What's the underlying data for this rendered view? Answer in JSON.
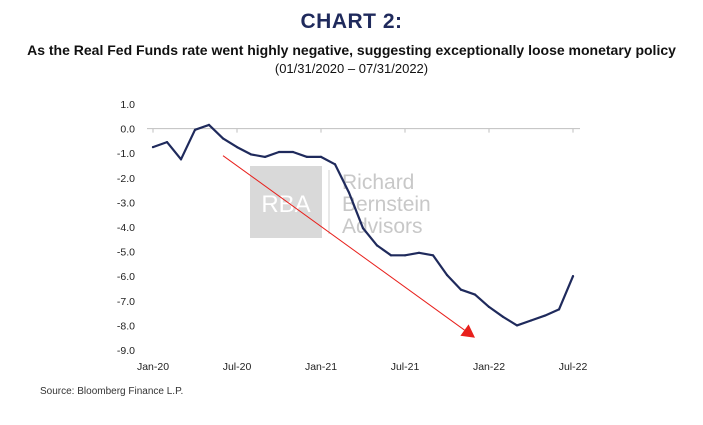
{
  "header": {
    "title": "CHART 2:",
    "subtitle": "As the Real Fed Funds rate went highly negative, suggesting exceptionally loose monetary policy",
    "date_range": "(01/31/2020 – 07/31/2022)"
  },
  "watermark": {
    "logo_text": "RBA",
    "lines": [
      "Richard",
      "Bernstein",
      "Advisors"
    ]
  },
  "footer": {
    "source": "Source: Bloomberg Finance L.P."
  },
  "colors": {
    "title": "#1f2a5c",
    "line": "#1f2a5c",
    "arrow": "#e8201c",
    "axis": "#bfbfbf",
    "watermark": "#c8c8c8"
  },
  "chart_data": {
    "type": "line",
    "title": "",
    "xlabel": "",
    "ylabel": "",
    "ylim": [
      -9.0,
      1.0
    ],
    "y_ticks": [
      1.0,
      0.0,
      -1.0,
      -2.0,
      -3.0,
      -4.0,
      -5.0,
      -6.0,
      -7.0,
      -8.0,
      -9.0
    ],
    "y_tick_labels": [
      "1.0",
      "0.0",
      "-1.0",
      "-2.0",
      "-3.0",
      "-4.0",
      "-5.0",
      "-6.0",
      "-7.0",
      "-8.0",
      "-9.0"
    ],
    "x_tick_labels": [
      "Jan-20",
      "Jul-20",
      "Jan-21",
      "Jul-21",
      "Jan-22",
      "Jul-22"
    ],
    "x_tick_dates": [
      "2020-01",
      "2020-07",
      "2021-01",
      "2021-07",
      "2022-01",
      "2022-07"
    ],
    "grid": false,
    "series": [
      {
        "x": [
          "2020-01",
          "2020-02",
          "2020-03",
          "2020-04",
          "2020-05",
          "2020-06",
          "2020-07",
          "2020-08",
          "2020-09",
          "2020-10",
          "2020-11",
          "2020-12",
          "2021-01",
          "2021-02",
          "2021-03",
          "2021-04",
          "2021-05",
          "2021-06",
          "2021-07",
          "2021-08",
          "2021-09",
          "2021-10",
          "2021-11",
          "2021-12",
          "2022-01",
          "2022-02",
          "2022-03",
          "2022-04",
          "2022-05",
          "2022-06",
          "2022-07"
        ],
        "values": [
          -0.75,
          -0.55,
          -1.25,
          -0.05,
          0.15,
          -0.4,
          -0.75,
          -1.05,
          -1.15,
          -0.95,
          -0.95,
          -1.15,
          -1.15,
          -1.45,
          -2.6,
          -4.05,
          -4.75,
          -5.15,
          -5.15,
          -5.05,
          -5.15,
          -5.95,
          -6.55,
          -6.75,
          -7.25,
          -7.65,
          -8.0,
          -7.8,
          -7.6,
          -7.35,
          -6.0
        ]
      }
    ],
    "annotations": [
      {
        "type": "arrow",
        "from": {
          "x": "2020-06",
          "y": -1.1
        },
        "to": {
          "x": "2021-12",
          "y": -8.5
        }
      }
    ]
  }
}
